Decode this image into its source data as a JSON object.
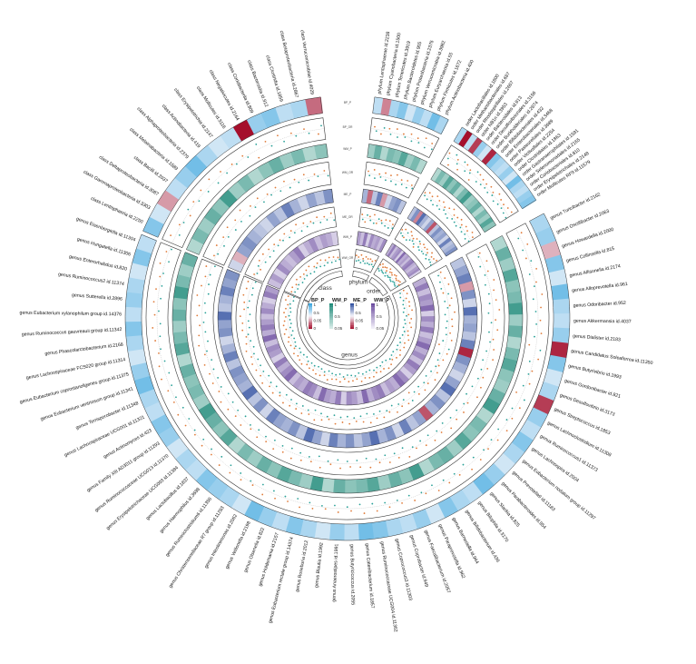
{
  "chart_data": {
    "type": "heatmap",
    "layout": "circular",
    "colors": {
      "BP": [
        "#a50f2c",
        "#f6f6fb",
        "#3aa6df"
      ],
      "WM": [
        "#d5eae6",
        "#1f8a79"
      ],
      "ME": [
        "#a50f2c",
        "#f6f6fb",
        "#2f4fa0"
      ],
      "WW": [
        "#f1eff8",
        "#6a4a9e"
      ],
      "dot_pos": "#e07b39",
      "dot_neg": "#2aa198"
    },
    "sectors": [
      {
        "name": "class",
        "labels": [
          "class Lentisphaeria id.2250",
          "class Gammaproteobacteria id.3303",
          "class Deltaproteobacteria id.3087",
          "class Bacilli id.2037",
          "class Melainabacteria id.1589",
          "class Alphaproteobacteria id.2379",
          "class Actinobacteria id.419",
          "class Erysipelotrichia id.2147",
          "class Mollicutes id.3116",
          "class Negativicutes id.2164",
          "class Coriobacteriia id.809",
          "class Bacteroidia id.912",
          "class Clostridia id.1859",
          "class Betaproteobacteria id.2867",
          "class Verrucomicrobiae id.4029"
        ],
        "values": {
          "BP": [
            0.6,
            0.2,
            -0.4,
            0.3,
            0.5,
            0.7,
            0.4,
            0.2,
            0.3,
            -1,
            0.5,
            0.6,
            0.3,
            0.4,
            -0.6
          ],
          "WM": [
            0.2,
            0.5,
            0.3,
            0.6,
            0.4,
            0.8,
            0.3,
            0.5,
            0.2,
            0.4,
            0.6,
            0.3,
            0.5,
            0.2,
            0.4
          ],
          "ME": [
            0.2,
            -0.3,
            0.5,
            0.6,
            0.4,
            0.3,
            0.2,
            0.5,
            0.3,
            0.7,
            0.4,
            0.2,
            0.5,
            0.3,
            0.6
          ],
          "WW": [
            0.3,
            0.5,
            0.2,
            0.6,
            0.4,
            0.3,
            0.5,
            0.7,
            0.2,
            0.4,
            0.6,
            0.3,
            0.5,
            0.4,
            0.2
          ]
        }
      },
      {
        "name": "phylum",
        "labels": [
          "phylum Lentisphaerae id.2238",
          "phylum Cyanobacteria id.1500",
          "phylum Tenericutes id.3919",
          "phylum Bacteroidetes id.905",
          "phylum Proteobacteria id.2375",
          "phylum Verrucomicrobia id.3982",
          "phylum Euryarchaeota id.55",
          "phylum Firmicutes id.1672",
          "phylum Actinobacteria id.400"
        ],
        "values": {
          "BP": [
            0.3,
            -0.5,
            0.4,
            0.6,
            0.2,
            0.5,
            0.3,
            0.7,
            0.4
          ],
          "WM": [
            0.3,
            0.6,
            0.2,
            0.5,
            0.4,
            0.7,
            0.3,
            0.5,
            0.2
          ],
          "ME": [
            0.4,
            -0.6,
            0.3,
            0.7,
            -0.4,
            0.2,
            0.5,
            0.6,
            0.3
          ],
          "WW": [
            0.5,
            0.3,
            0.7,
            0.2,
            0.6,
            0.4,
            0.5,
            0.3,
            0.6
          ]
        }
      },
      {
        "name": "order",
        "labels": [
          "order Lactobacillales id.1800",
          "order Methanobacteriales id.687",
          "order Rhodospirillales id.2667",
          "order NB1n id.3953",
          "order Bacteroidales id.913",
          "order Desulfovibrionales id.3156",
          "order Burkholderiales id.2874",
          "order Bifidobacteriales id.432",
          "order Enterobacteriales id.3468",
          "order Pasteurellales id.3689",
          "order Victivallales id.2254",
          "order Clostridiales id.1863",
          "order Gastranaerophilales id.1591",
          "order Selenomonadales id.2165",
          "order Coriobacteriales id.810",
          "order Erysipelotrichales id.2148",
          "order Mollicutes RF9 id.11579"
        ],
        "values": {
          "BP": [
            0.4,
            -1,
            0.3,
            -0.8,
            0.5,
            0.2,
            -0.9,
            0.6,
            0.4,
            0.3,
            0.5,
            0.2,
            0.7,
            0.4,
            0.3,
            0.5,
            0.6
          ],
          "WM": [
            0.2,
            0.5,
            0.3,
            0.7,
            0.4,
            0.6,
            0.2,
            0.5,
            0.8,
            0.3,
            0.4,
            0.6,
            0.2,
            0.5,
            0.3,
            0.7,
            0.4
          ],
          "ME": [
            0.3,
            0.6,
            -0.5,
            0.8,
            0.4,
            0.2,
            0.5,
            -0.7,
            0.3,
            0.6,
            0.4,
            0.5,
            0.2,
            0.7,
            0.3,
            0.4,
            0.6
          ],
          "WW": [
            0.4,
            0.7,
            0.3,
            0.5,
            0.6,
            0.2,
            0.8,
            0.4,
            0.5,
            0.3,
            0.6,
            0.7,
            0.4,
            0.3,
            0.5,
            0.6,
            0.2
          ]
        }
      },
      {
        "name": "genus",
        "labels": [
          "genus Turicibacter id.2162",
          "genus Oscillibacter id.2063",
          "genus Howardella id.2000",
          "genus Collinsella id.815",
          "genus Allisonella id.2174",
          "genus Alloprevotella id.961",
          "genus Odoribacter id.952",
          "genus Akkermansia id.4037",
          "genus Dialister id.2183",
          "genus Candidatus Soleaferrea id.11350",
          "genus Butyrivibrio id.1993",
          "genus Gordonibacter id.821",
          "genus Desulfovibrio id.3173",
          "genus Streptococcus id.1853",
          "genus Lachnoclostridium id.11308",
          "genus Ruminococcus1 id.11373",
          "genus Lachnospira id.2004",
          "genus Eubacterium nodatum group id.11297",
          "genus Prevotella9 id.11183",
          "genus Parabacteroides id.954",
          "genus Slackia id.825",
          "genus Bilophila id.3170",
          "genus Bifidobacterium id.436",
          "genus Barnesiella id.944",
          "genus Paraprevotella id.962",
          "genus Faecalibacterium id.2057",
          "genus Coprobacter id.949",
          "genus Coprococcus3 id.11303",
          "genus Ruminococcaceae UCG004 id.11362",
          "genus Catenibacterium id.1857",
          "genus Butyricicoccus id.2055",
          "genus Anaerostipes id.1991",
          "genus Blautia id.1992",
          "genus Roseburia id.2012",
          "genus Eubacterium rectale group id.14374",
          "genus Holdemania id.2157",
          "genus Olsenella id.822",
          "genus Veillonella id.2198",
          "genus Intestinimonas id.2062",
          "genus Christensenellaceae R7 group id.11283",
          "genus Ruminiclostridium6 id.11356",
          "genus Haemophilus id.3698",
          "genus Lactobacillus id.1837",
          "genus Erysipelotrichaceae UCG003 id.11384",
          "genus Ruminococcaceae UCG013 id.11370",
          "genus Family XIII AD3011 group id.11293",
          "genus Actinomyces id.423",
          "genus Lachnospiraceae UCG001 id.11321",
          "genus Terrisporobacter id.11348",
          "genus Eubacterium ventriosum group id.11341",
          "genus Eubacterium coprostanoligenes group id.11375",
          "genus Lachnospiraceae FCS020 group id.11314",
          "genus Phascolarctobacterium id.2168",
          "genus Ruminococcus gauvreauii group id.11342",
          "genus Eubacterium xylanophilum group id.14376",
          "genus Sutterella id.2896",
          "genus Ruminococcus2 id.11374",
          "genus Enterorhabdus id.820",
          "genus Hungatella id.11306",
          "genus Eisenbergiella id.11304"
        ],
        "values": {
          "BP": [
            0.4,
            0.5,
            -0.3,
            0.6,
            0.2,
            0.7,
            0.4,
            0.3,
            0.5,
            -0.9,
            0.6,
            0.2,
            0.4,
            -0.8,
            0.5,
            0.3,
            0.6,
            0.4,
            0.2,
            0.5,
            0.7,
            0.3,
            0.4,
            0.6,
            0.2,
            0.5,
            0.3,
            0.4,
            0.6,
            0.7,
            0.3,
            0.5,
            0.2,
            0.4,
            0.6,
            0.3,
            0.5,
            0.7,
            0.2,
            0.4,
            0.5,
            0.6,
            0.3,
            0.4,
            0.2,
            0.5,
            0.6,
            0.3,
            0.4,
            0.7,
            0.5,
            0.2,
            0.4,
            0.6,
            0.3,
            0.5,
            0.4,
            0.2,
            0.6,
            0.3
          ],
          "WM": [
            0.2,
            0.6,
            0.3,
            0.7,
            0.4,
            0.5,
            0.8,
            0.3,
            0.6,
            0.2,
            0.5,
            0.7,
            0.4,
            0.3,
            0.6,
            0.8,
            0.2,
            0.5,
            0.4,
            0.7,
            0.3,
            0.6,
            0.5,
            0.2,
            0.8,
            0.4,
            0.6,
            0.3,
            0.7,
            0.5,
            0.4,
            0.6,
            0.2,
            0.8,
            0.3,
            0.5,
            0.7,
            0.4,
            0.6,
            0.3,
            0.5,
            0.2,
            0.7,
            0.4,
            0.6,
            0.8,
            0.3,
            0.5,
            0.4,
            0.6,
            0.2,
            0.7,
            0.5,
            0.3,
            0.6,
            0.4,
            0.8,
            0.5,
            0.3,
            0.6
          ],
          "ME": [
            0.3,
            0.5,
            0.7,
            -0.4,
            0.6,
            0.2,
            0.8,
            0.4,
            0.5,
            0.3,
            0.7,
            -0.9,
            0.6,
            0.4,
            0.2,
            0.5,
            0.8,
            0.3,
            0.6,
            0.4,
            -0.7,
            0.5,
            0.3,
            0.7,
            0.2,
            0.6,
            0.4,
            0.8,
            0.5,
            0.3,
            0.6,
            0.4,
            0.7,
            0.2,
            0.5,
            0.8,
            0.3,
            0.6,
            0.4,
            0.5,
            0.7,
            0.2,
            0.6,
            0.3,
            0.8,
            0.4,
            0.5,
            0.6,
            0.3,
            0.7,
            0.4,
            0.2,
            0.6,
            0.5,
            0.8,
            0.3,
            0.4,
            0.7,
            0.5,
            0.6
          ],
          "WW": [
            0.4,
            0.7,
            0.3,
            0.6,
            0.5,
            0.8,
            0.2,
            0.6,
            0.4,
            0.7,
            0.3,
            0.5,
            0.8,
            0.4,
            0.6,
            0.3,
            0.7,
            0.5,
            0.2,
            0.6,
            0.8,
            0.4,
            0.5,
            0.3,
            0.7,
            0.6,
            0.4,
            0.8,
            0.3,
            0.5,
            0.6,
            0.2,
            0.7,
            0.4,
            0.5,
            0.8,
            0.3,
            0.6,
            0.7,
            0.4,
            0.5,
            0.3,
            0.8,
            0.6,
            0.4,
            0.7,
            0.2,
            0.5,
            0.6,
            0.3,
            0.8,
            0.4,
            0.7,
            0.5,
            0.3,
            0.6,
            0.4,
            0.2,
            0.7,
            0.5
          ]
        }
      }
    ],
    "legend": [
      {
        "title": "BP_P",
        "ticks": [
          "1",
          "0.5",
          "0.05",
          "0"
        ]
      },
      {
        "title": "WM_P",
        "ticks": [
          "1",
          "0.5",
          "0.05"
        ]
      },
      {
        "title": "ME_P",
        "ticks": [
          "1",
          "0.5",
          "0.05",
          "0"
        ]
      },
      {
        "title": "WW_P",
        "ticks": [
          "1",
          "0.5",
          "0.05"
        ]
      }
    ],
    "track_labels": [
      "BP_P",
      "BP_OR",
      "WM_P",
      "WM_OR",
      "ME_P",
      "ME_OR",
      "WW_P",
      "WW_OR"
    ]
  }
}
